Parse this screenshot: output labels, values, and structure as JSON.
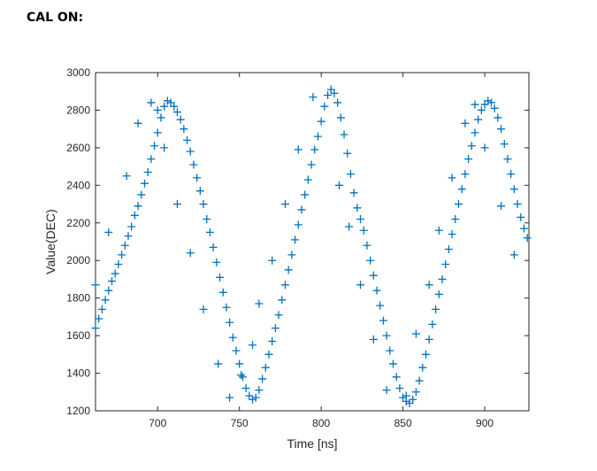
{
  "caption": "CAL ON:",
  "chart_data": {
    "type": "scatter",
    "title": "",
    "xlabel": "Time [ns]",
    "ylabel": "Value(DEC)",
    "xlim": [
      662,
      927
    ],
    "ylim": [
      1200,
      3000
    ],
    "xticks": [
      700,
      750,
      800,
      850,
      900
    ],
    "xtick_labels": [
      "700",
      "750",
      "800",
      "850",
      "900"
    ],
    "yticks": [
      1200,
      1400,
      1600,
      1800,
      2000,
      2200,
      2400,
      2600,
      2800,
      3000
    ],
    "ytick_labels": [
      "1200",
      "1400",
      "1600",
      "1800",
      "2000",
      "2200",
      "2400",
      "2600",
      "2800",
      "3000"
    ],
    "marker": "+",
    "color": "#0072BD",
    "grid": false,
    "series": [
      {
        "points": [
          [
            662,
            1640
          ],
          [
            664,
            1690
          ],
          [
            666,
            1740
          ],
          [
            668,
            1790
          ],
          [
            670,
            1840
          ],
          [
            672,
            1890
          ],
          [
            674,
            1930
          ],
          [
            676,
            1980
          ],
          [
            678,
            2030
          ],
          [
            680,
            2080
          ],
          [
            682,
            2130
          ],
          [
            684,
            2180
          ],
          [
            686,
            2240
          ],
          [
            688,
            2290
          ],
          [
            690,
            2350
          ],
          [
            692,
            2410
          ],
          [
            694,
            2470
          ],
          [
            696,
            2540
          ],
          [
            698,
            2610
          ],
          [
            700,
            2680
          ],
          [
            702,
            2760
          ],
          [
            704,
            2820
          ],
          [
            706,
            2850
          ],
          [
            708,
            2840
          ],
          [
            710,
            2820
          ],
          [
            712,
            2790
          ],
          [
            714,
            2750
          ],
          [
            716,
            2700
          ],
          [
            718,
            2640
          ],
          [
            720,
            2580
          ],
          [
            722,
            2510
          ],
          [
            724,
            2440
          ],
          [
            726,
            2370
          ],
          [
            728,
            2300
          ],
          [
            730,
            2220
          ],
          [
            732,
            2150
          ],
          [
            734,
            2070
          ],
          [
            736,
            1990
          ],
          [
            738,
            1910
          ],
          [
            740,
            1830
          ],
          [
            742,
            1750
          ],
          [
            744,
            1670
          ],
          [
            746,
            1590
          ],
          [
            748,
            1520
          ],
          [
            750,
            1450
          ],
          [
            752,
            1380
          ],
          [
            754,
            1320
          ],
          [
            756,
            1280
          ],
          [
            758,
            1260
          ],
          [
            760,
            1270
          ],
          [
            762,
            1310
          ],
          [
            764,
            1370
          ],
          [
            766,
            1430
          ],
          [
            768,
            1500
          ],
          [
            770,
            1570
          ],
          [
            772,
            1640
          ],
          [
            774,
            1710
          ],
          [
            776,
            1790
          ],
          [
            778,
            1870
          ],
          [
            780,
            1950
          ],
          [
            782,
            2030
          ],
          [
            784,
            2110
          ],
          [
            786,
            2190
          ],
          [
            788,
            2270
          ],
          [
            790,
            2350
          ],
          [
            792,
            2430
          ],
          [
            794,
            2510
          ],
          [
            796,
            2590
          ],
          [
            798,
            2660
          ],
          [
            800,
            2740
          ],
          [
            802,
            2820
          ],
          [
            804,
            2880
          ],
          [
            806,
            2910
          ],
          [
            808,
            2890
          ],
          [
            810,
            2840
          ],
          [
            812,
            2760
          ],
          [
            814,
            2670
          ],
          [
            816,
            2570
          ],
          [
            818,
            2460
          ],
          [
            820,
            2360
          ],
          [
            822,
            2280
          ],
          [
            824,
            2220
          ],
          [
            826,
            2160
          ],
          [
            828,
            2080
          ],
          [
            830,
            2000
          ],
          [
            832,
            1920
          ],
          [
            834,
            1840
          ],
          [
            836,
            1760
          ],
          [
            838,
            1680
          ],
          [
            840,
            1600
          ],
          [
            842,
            1520
          ],
          [
            844,
            1450
          ],
          [
            846,
            1380
          ],
          [
            848,
            1320
          ],
          [
            850,
            1270
          ],
          [
            852,
            1250
          ],
          [
            854,
            1240
          ],
          [
            856,
            1260
          ],
          [
            858,
            1300
          ],
          [
            860,
            1360
          ],
          [
            862,
            1430
          ],
          [
            864,
            1500
          ],
          [
            866,
            1580
          ],
          [
            868,
            1660
          ],
          [
            870,
            1740
          ],
          [
            872,
            1820
          ],
          [
            874,
            1900
          ],
          [
            876,
            1980
          ],
          [
            878,
            2060
          ],
          [
            880,
            2140
          ],
          [
            882,
            2220
          ],
          [
            884,
            2300
          ],
          [
            886,
            2380
          ],
          [
            888,
            2460
          ],
          [
            890,
            2540
          ],
          [
            892,
            2610
          ],
          [
            894,
            2680
          ],
          [
            896,
            2750
          ],
          [
            898,
            2800
          ],
          [
            900,
            2830
          ],
          [
            902,
            2850
          ],
          [
            904,
            2840
          ],
          [
            906,
            2810
          ],
          [
            908,
            2760
          ],
          [
            910,
            2700
          ],
          [
            912,
            2620
          ],
          [
            914,
            2540
          ],
          [
            916,
            2460
          ],
          [
            918,
            2380
          ],
          [
            920,
            2300
          ],
          [
            922,
            2230
          ],
          [
            924,
            2170
          ],
          [
            926,
            2120
          ],
          [
            662,
            1870
          ],
          [
            670,
            2150
          ],
          [
            681,
            2450
          ],
          [
            688,
            2730
          ],
          [
            696,
            2840
          ],
          [
            700,
            2800
          ],
          [
            704,
            2600
          ],
          [
            712,
            2300
          ],
          [
            720,
            2040
          ],
          [
            728,
            1740
          ],
          [
            737,
            1450
          ],
          [
            744,
            1270
          ],
          [
            751,
            1390
          ],
          [
            758,
            1550
          ],
          [
            762,
            1770
          ],
          [
            770,
            2000
          ],
          [
            778,
            2300
          ],
          [
            786,
            2590
          ],
          [
            795,
            2870
          ],
          [
            811,
            2400
          ],
          [
            817,
            2180
          ],
          [
            824,
            1870
          ],
          [
            832,
            1580
          ],
          [
            840,
            1310
          ],
          [
            852,
            1280
          ],
          [
            858,
            1610
          ],
          [
            866,
            1870
          ],
          [
            872,
            2160
          ],
          [
            880,
            2440
          ],
          [
            888,
            2730
          ],
          [
            894,
            2830
          ],
          [
            900,
            2600
          ],
          [
            910,
            2290
          ],
          [
            918,
            2030
          ]
        ]
      }
    ]
  }
}
